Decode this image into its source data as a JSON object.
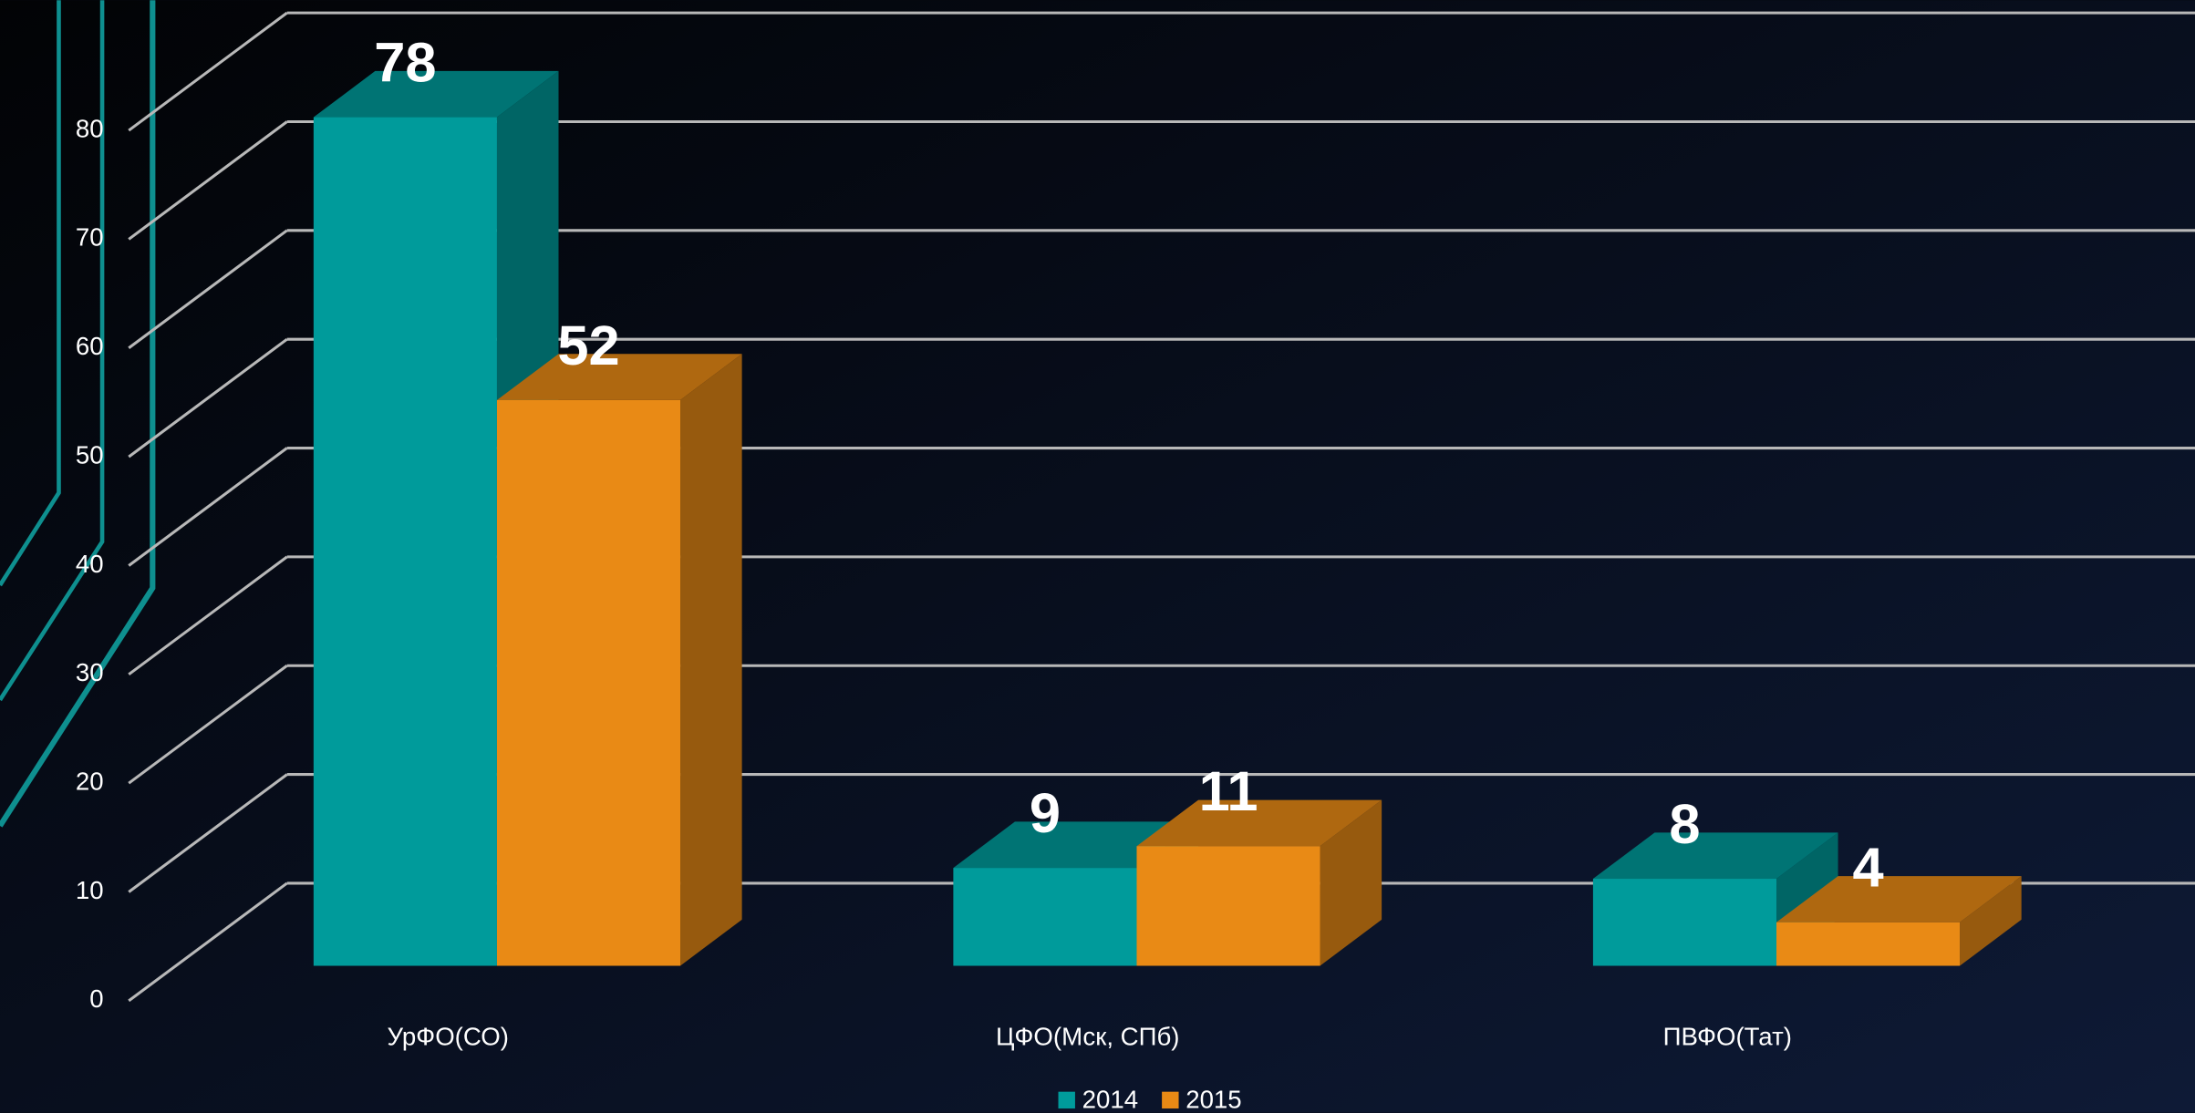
{
  "chart_data": {
    "type": "bar3d",
    "categories": [
      "УрФО(СО)",
      "ЦФО(Мск, СПб)",
      "ПВФО(Тат)"
    ],
    "series": [
      {
        "name": "2014",
        "color": "#009b9b",
        "values": [
          78,
          9,
          8
        ]
      },
      {
        "name": "2015",
        "color": "#e98a15",
        "values": [
          52,
          11,
          4
        ]
      }
    ],
    "ylim": [
      0,
      80
    ],
    "yticks": [
      0,
      10,
      20,
      30,
      40,
      50,
      60,
      70,
      80
    ],
    "grid": true,
    "legend": "bottom"
  }
}
